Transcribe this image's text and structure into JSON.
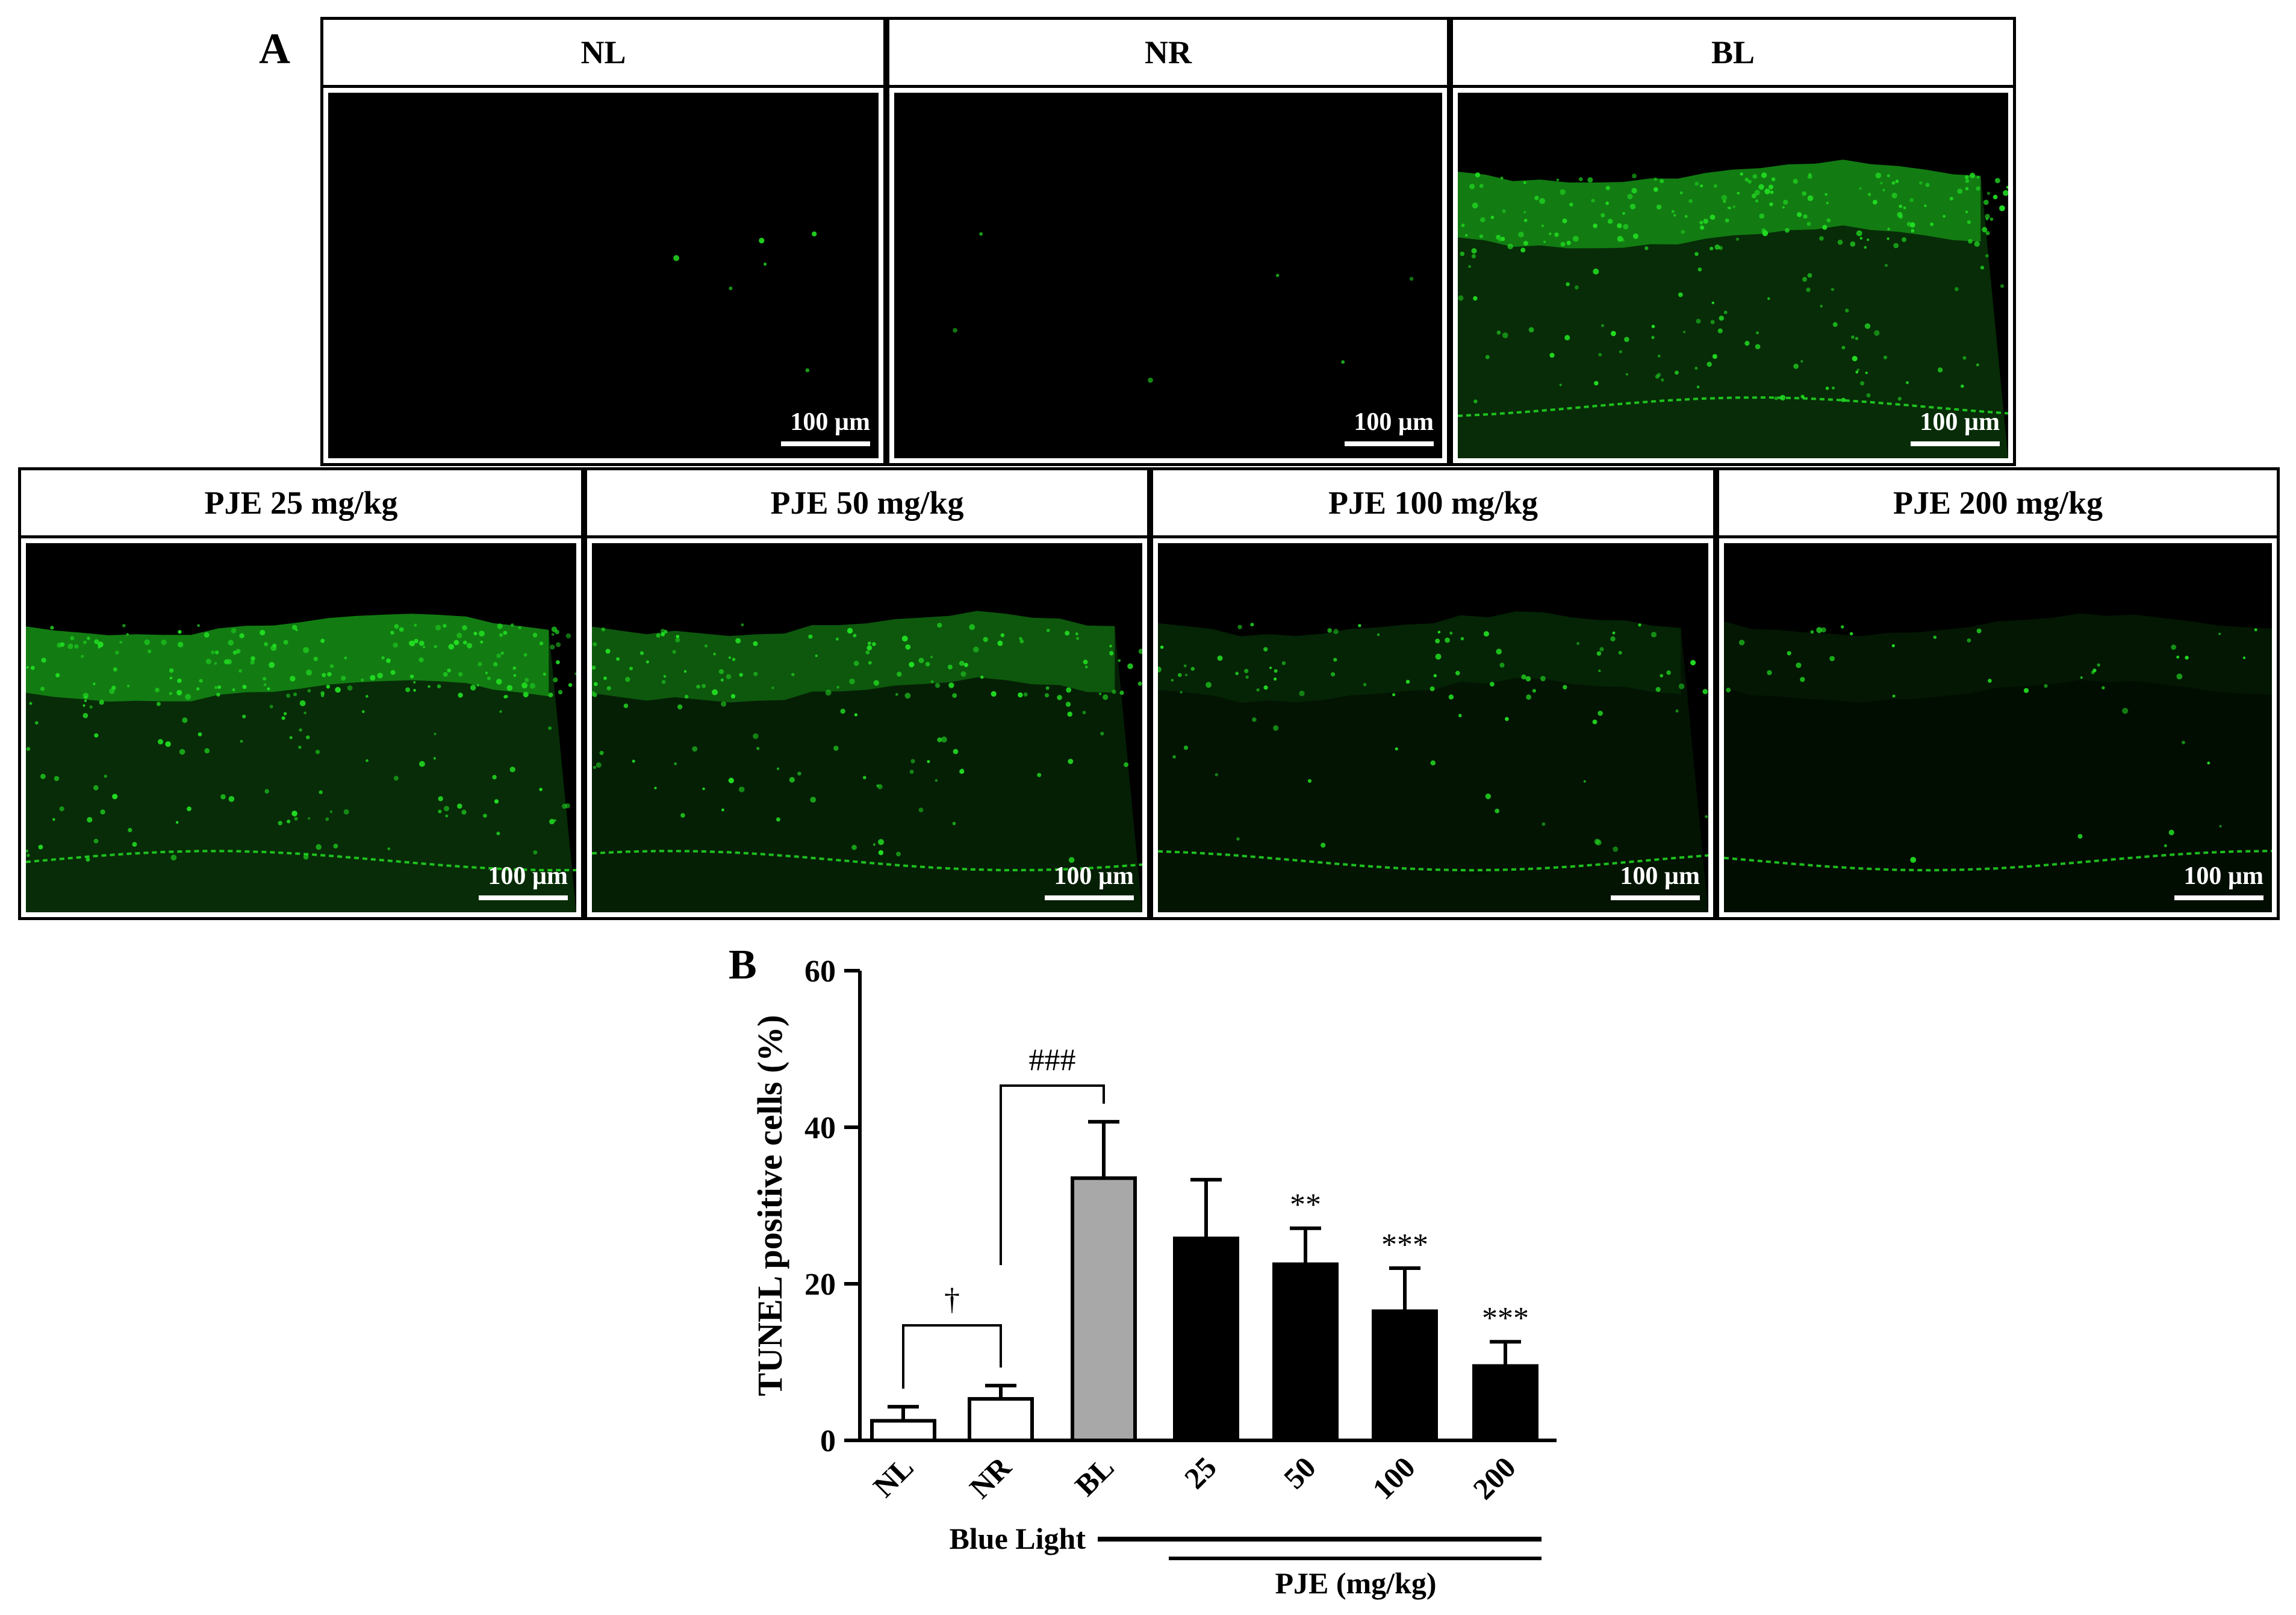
{
  "panel_a": {
    "letter": "A",
    "panels": [
      {
        "title": "NL",
        "scale_label": "100 µm",
        "staining": "none"
      },
      {
        "title": "NR",
        "scale_label": "100 µm",
        "staining": "none"
      },
      {
        "title": "BL",
        "scale_label": "100 µm",
        "staining": "strong"
      },
      {
        "title": "PJE 25 mg/kg",
        "scale_label": "100 µm",
        "staining": "strong"
      },
      {
        "title": "PJE 50 mg/kg",
        "scale_label": "100 µm",
        "staining": "moderate"
      },
      {
        "title": "PJE 100 mg/kg",
        "scale_label": "100 µm",
        "staining": "weak"
      },
      {
        "title": "PJE 200 mg/kg",
        "scale_label": "100 µm",
        "staining": "faint"
      }
    ],
    "colors": {
      "background": "#000000",
      "stain": "#22dd22"
    }
  },
  "chart_data": {
    "letter": "B",
    "type": "bar",
    "ylabel": "TUNEL positive cells (%)",
    "ylim": [
      0,
      60
    ],
    "yticks": [
      0,
      20,
      40,
      60
    ],
    "categories": [
      "NL",
      "NR",
      "BL",
      "25",
      "50",
      "100",
      "200"
    ],
    "values": [
      2.5,
      5.3,
      33.5,
      25.8,
      22.5,
      16.5,
      9.5
    ],
    "errors": [
      1.8,
      1.7,
      7.2,
      7.5,
      4.6,
      5.5,
      3.1
    ],
    "bar_fill": [
      "#ffffff",
      "#ffffff",
      "#a8a8a8",
      "#000000",
      "#000000",
      "#000000",
      "#000000"
    ],
    "significance": [
      "",
      "",
      "",
      "",
      "**",
      "***",
      "***"
    ],
    "brackets": [
      {
        "from": "NL",
        "to": "NR",
        "label": "†"
      },
      {
        "from": "NR",
        "to": "BL",
        "label": "###"
      }
    ],
    "group_lines": [
      {
        "label": "Blue Light",
        "from": "BL",
        "to": "200"
      },
      {
        "label": "PJE (mg/kg)",
        "from": "25",
        "to": "200"
      }
    ]
  }
}
